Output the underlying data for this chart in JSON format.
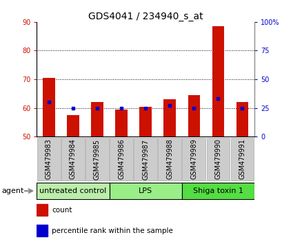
{
  "title": "GDS4041 / 234940_s_at",
  "samples": [
    "GSM479983",
    "GSM479984",
    "GSM479985",
    "GSM479986",
    "GSM479987",
    "GSM479988",
    "GSM479989",
    "GSM479990",
    "GSM479991"
  ],
  "count_values": [
    70.5,
    57.5,
    62.0,
    59.5,
    60.5,
    63.0,
    64.5,
    88.5,
    62.0
  ],
  "percentile_values": [
    30,
    25,
    25,
    25,
    25,
    27,
    25,
    33,
    25
  ],
  "ylim_left": [
    50,
    90
  ],
  "ylim_right": [
    0,
    100
  ],
  "yticks_left": [
    50,
    60,
    70,
    80,
    90
  ],
  "yticks_right": [
    0,
    25,
    50,
    75,
    100
  ],
  "ytick_labels_right": [
    "0",
    "25",
    "50",
    "75",
    "100%"
  ],
  "bar_baseline": 50,
  "bar_color": "#cc1100",
  "dot_color": "#0000cc",
  "grid_color": "#000000",
  "bg_color": "#ffffff",
  "plot_bg_color": "#ffffff",
  "sample_box_color": "#cccccc",
  "groups": [
    {
      "label": "untreated control",
      "start": 0,
      "end": 3,
      "color": "#bbeeaa"
    },
    {
      "label": "LPS",
      "start": 3,
      "end": 6,
      "color": "#99ee88"
    },
    {
      "label": "Shiga toxin 1",
      "start": 6,
      "end": 9,
      "color": "#55dd44"
    }
  ],
  "agent_label": "agent",
  "legend_count_label": "count",
  "legend_pct_label": "percentile rank within the sample",
  "title_fontsize": 10,
  "tick_fontsize": 7,
  "label_fontsize": 8,
  "group_label_fontsize": 8,
  "legend_fontsize": 7.5
}
